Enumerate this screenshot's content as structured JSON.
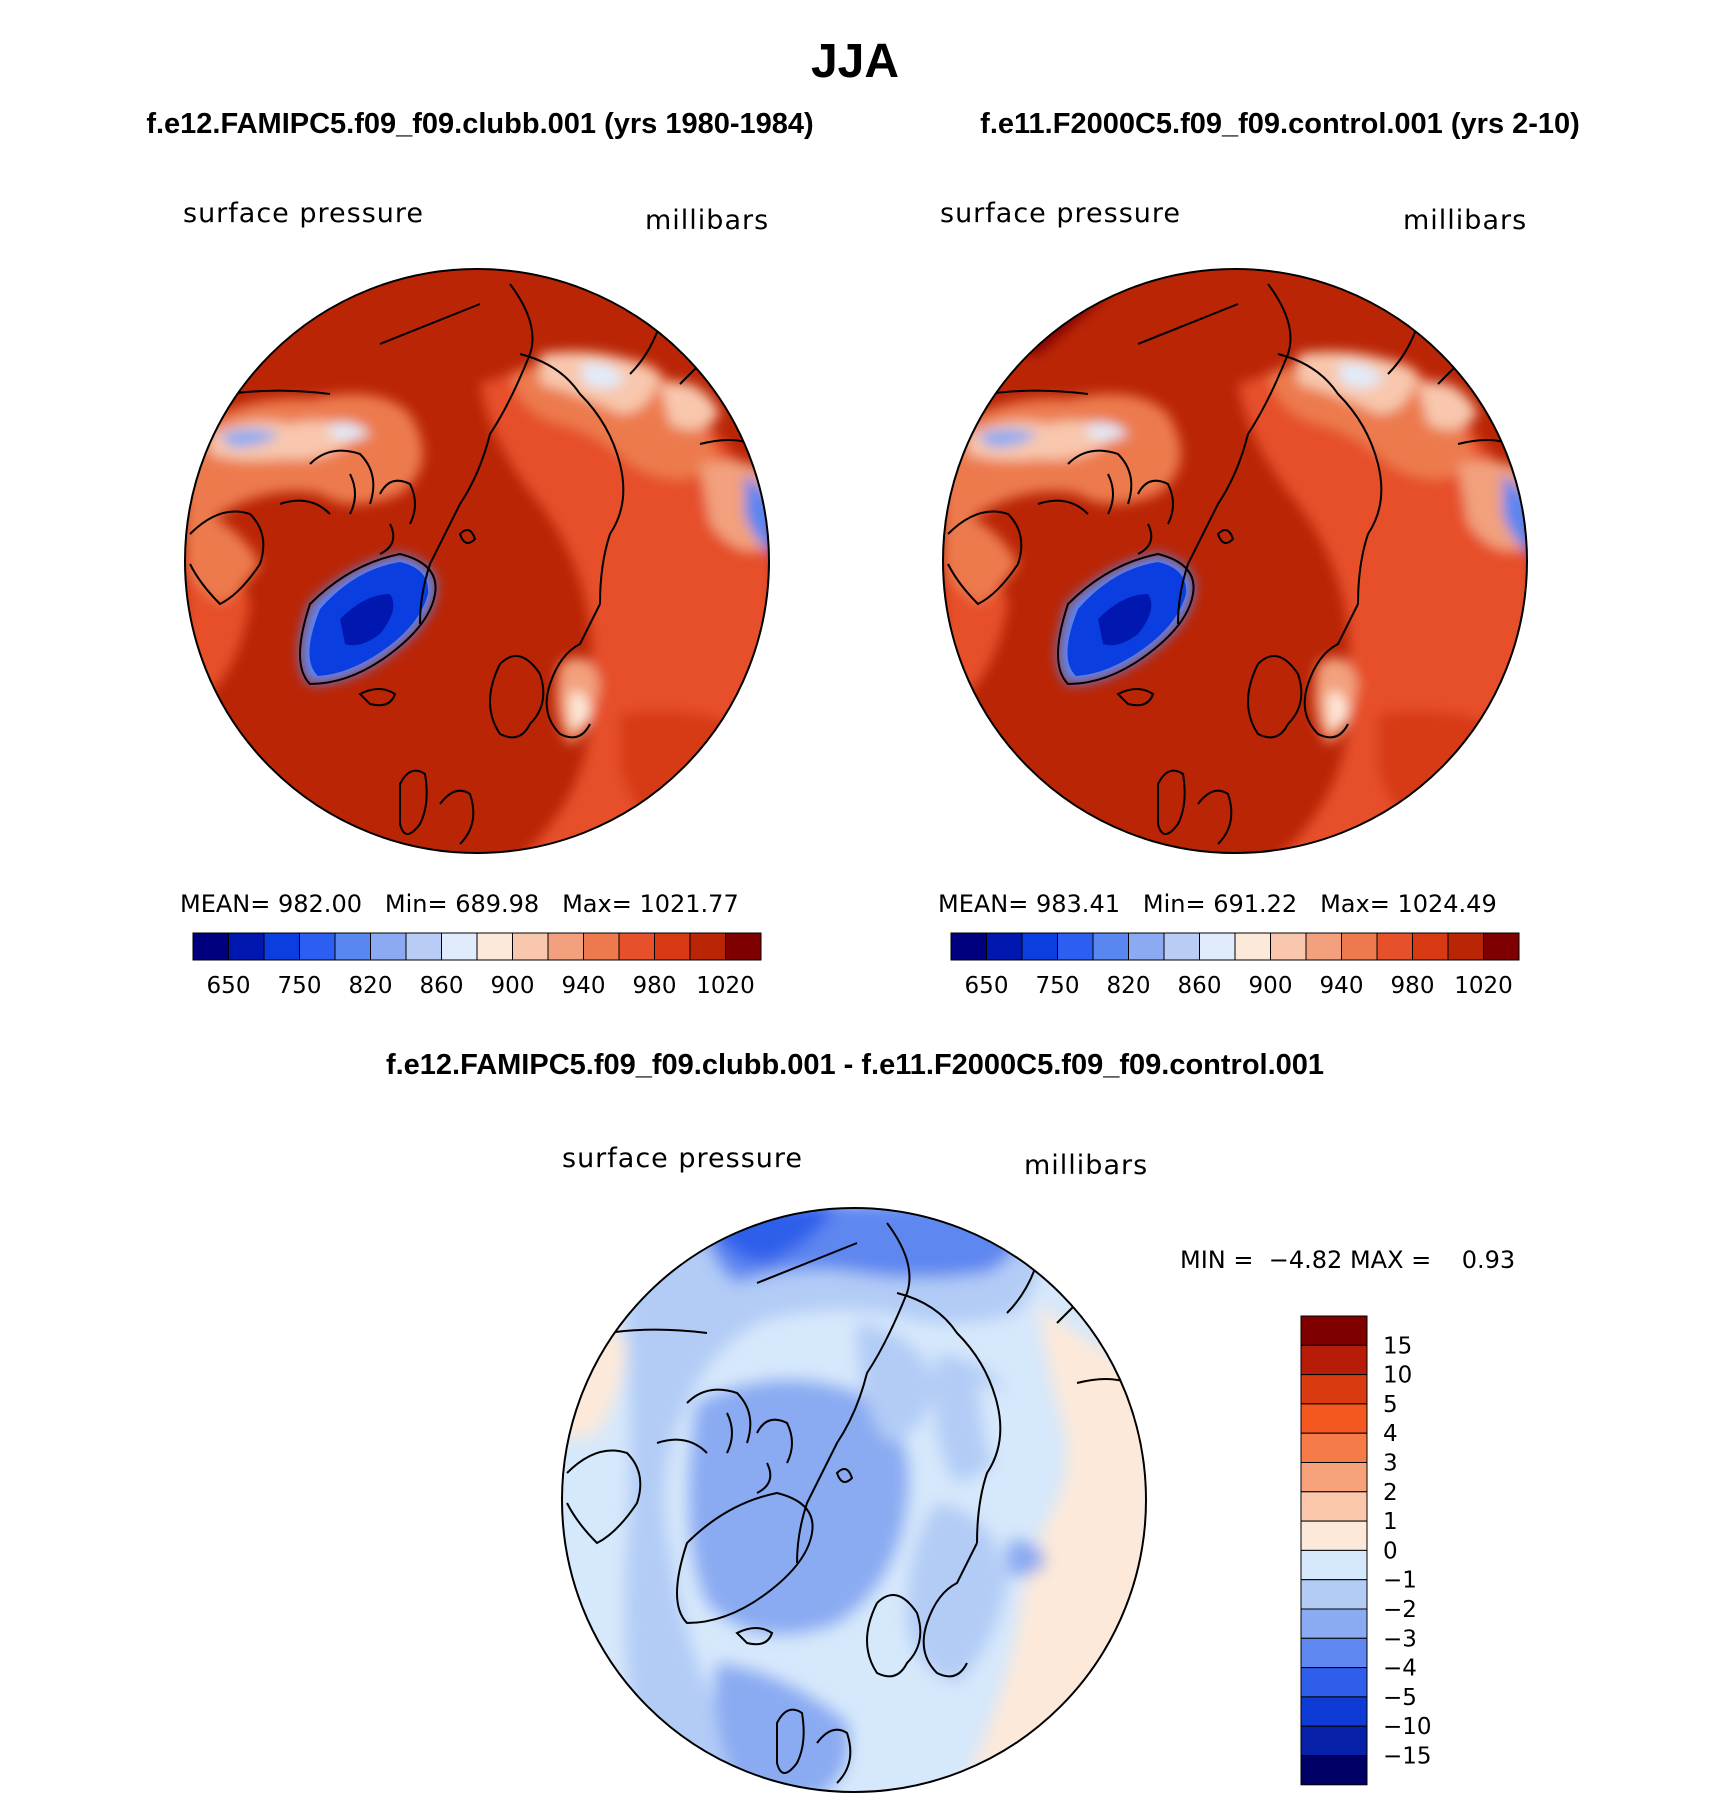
{
  "figure": {
    "season": "JJA",
    "panel1": {
      "title": "f.e12.FAMIPC5.f09_f09.clubb.001 (yrs 1980-1984)",
      "variable": "surface pressure",
      "units": "millibars",
      "mean_label": "MEAN=",
      "mean": "982.00",
      "min_label": "Min=",
      "min": "689.98",
      "max_label": "Max=",
      "max": "1021.77"
    },
    "panel2": {
      "title": "f.e11.F2000C5.f09_f09.control.001 (yrs 2-10)",
      "variable": "surface pressure",
      "units": "millibars",
      "mean_label": "MEAN=",
      "mean": "983.41",
      "min_label": "Min=",
      "min": "691.22",
      "max_label": "Max=",
      "max": "1024.49"
    },
    "panel3": {
      "title": "f.e12.FAMIPC5.f09_f09.clubb.001 - f.e11.F2000C5.f09_f09.control.001",
      "variable": "surface pressure",
      "units": "millibars",
      "min_label": "MIN =",
      "min": "−4.82",
      "max_label": "MAX =",
      "max": "0.93"
    }
  },
  "chart_data": [
    {
      "type": "heatmap",
      "projection": "north polar stereographic",
      "title": "f.e12.FAMIPC5.f09_f09.clubb.001 (yrs 1980-1984)",
      "variable": "surface pressure",
      "units": "millibars",
      "mean": 982.0,
      "min": 689.98,
      "max": 1021.77,
      "colorbar_ticks": [
        "650",
        "750",
        "820",
        "860",
        "900",
        "940",
        "980",
        "1020"
      ],
      "colorbar_colors": [
        "#00007f",
        "#0018b0",
        "#0a3ee0",
        "#2d5ef2",
        "#5a86f0",
        "#8caaf2",
        "#b8ccf6",
        "#e0ecfb",
        "#fde9d9",
        "#f8c7ad",
        "#f2a07d",
        "#ec7a4e",
        "#e6502a",
        "#d73a12",
        "#ba2506",
        "#7f0000"
      ]
    },
    {
      "type": "heatmap",
      "projection": "north polar stereographic",
      "title": "f.e11.F2000C5.f09_f09.control.001 (yrs 2-10)",
      "variable": "surface pressure",
      "units": "millibars",
      "mean": 983.41,
      "min": 691.22,
      "max": 1024.49,
      "colorbar_ticks": [
        "650",
        "750",
        "820",
        "860",
        "900",
        "940",
        "980",
        "1020"
      ],
      "colorbar_colors": [
        "#00007f",
        "#0018b0",
        "#0a3ee0",
        "#2d5ef2",
        "#5a86f0",
        "#8caaf2",
        "#b8ccf6",
        "#e0ecfb",
        "#fde9d9",
        "#f8c7ad",
        "#f2a07d",
        "#ec7a4e",
        "#e6502a",
        "#d73a12",
        "#ba2506",
        "#7f0000"
      ]
    },
    {
      "type": "heatmap",
      "projection": "north polar stereographic",
      "title": "f.e12.FAMIPC5.f09_f09.clubb.001 - f.e11.F2000C5.f09_f09.control.001",
      "variable": "surface pressure",
      "units": "millibars",
      "min": -4.82,
      "max": 0.93,
      "colorbar_ticks": [
        "15",
        "10",
        "5",
        "4",
        "3",
        "2",
        "1",
        "0",
        "−1",
        "−2",
        "−3",
        "−4",
        "−5",
        "−10",
        "−15"
      ],
      "colorbar_colors": [
        "#7f0000",
        "#b71c08",
        "#d93a10",
        "#f4581e",
        "#f57c48",
        "#f7a27a",
        "#fbc8ab",
        "#fde9d9",
        "#d6e8fb",
        "#b2ccf6",
        "#8aaaf2",
        "#5f87f0",
        "#2f5eeb",
        "#0e3ad6",
        "#0620a8",
        "#000066"
      ]
    }
  ]
}
